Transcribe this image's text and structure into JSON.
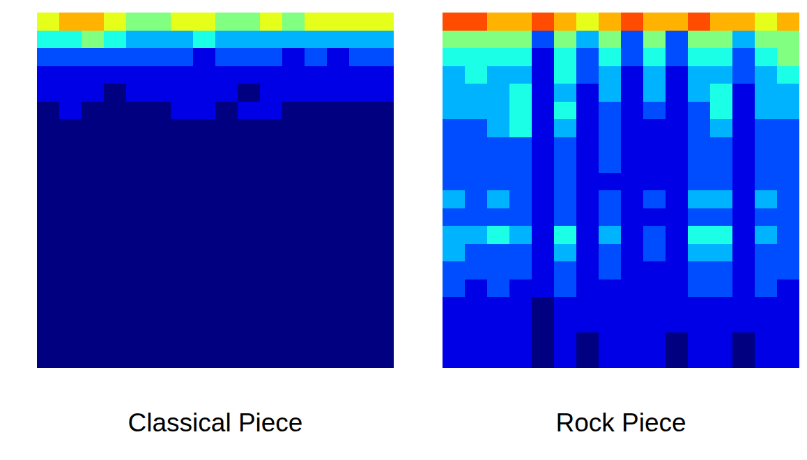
{
  "chart_data": [
    {
      "type": "heatmap",
      "title": "Classical Piece",
      "zlim": [
        0,
        10
      ],
      "cells": [
        [
          6,
          7,
          7,
          6,
          5,
          5,
          6,
          6,
          5,
          5,
          6,
          5,
          6,
          6,
          6,
          6
        ],
        [
          4,
          4,
          5,
          4,
          3,
          3,
          3,
          4,
          3,
          3,
          3,
          3,
          3,
          3,
          3,
          3
        ],
        [
          2,
          2,
          2,
          2,
          2,
          2,
          2,
          1,
          2,
          2,
          2,
          1,
          2,
          1,
          2,
          2
        ],
        [
          1,
          1,
          1,
          1,
          1,
          1,
          1,
          1,
          1,
          1,
          1,
          1,
          1,
          1,
          1,
          1
        ],
        [
          1,
          1,
          1,
          0,
          1,
          1,
          1,
          1,
          1,
          0,
          1,
          1,
          1,
          1,
          1,
          1
        ],
        [
          0,
          1,
          0,
          0,
          0,
          0,
          1,
          1,
          0,
          1,
          1,
          0,
          0,
          0,
          0,
          0
        ],
        [
          0,
          0,
          0,
          0,
          0,
          0,
          0,
          0,
          0,
          0,
          0,
          0,
          0,
          0,
          0,
          0
        ],
        [
          0,
          0,
          0,
          0,
          0,
          0,
          0,
          0,
          0,
          0,
          0,
          0,
          0,
          0,
          0,
          0
        ],
        [
          0,
          0,
          0,
          0,
          0,
          0,
          0,
          0,
          0,
          0,
          0,
          0,
          0,
          0,
          0,
          0
        ],
        [
          0,
          0,
          0,
          0,
          0,
          0,
          0,
          0,
          0,
          0,
          0,
          0,
          0,
          0,
          0,
          0
        ],
        [
          0,
          0,
          0,
          0,
          0,
          0,
          0,
          0,
          0,
          0,
          0,
          0,
          0,
          0,
          0,
          0
        ],
        [
          0,
          0,
          0,
          0,
          0,
          0,
          0,
          0,
          0,
          0,
          0,
          0,
          0,
          0,
          0,
          0
        ],
        [
          0,
          0,
          0,
          0,
          0,
          0,
          0,
          0,
          0,
          0,
          0,
          0,
          0,
          0,
          0,
          0
        ],
        [
          0,
          0,
          0,
          0,
          0,
          0,
          0,
          0,
          0,
          0,
          0,
          0,
          0,
          0,
          0,
          0
        ],
        [
          0,
          0,
          0,
          0,
          0,
          0,
          0,
          0,
          0,
          0,
          0,
          0,
          0,
          0,
          0,
          0
        ],
        [
          0,
          0,
          0,
          0,
          0,
          0,
          0,
          0,
          0,
          0,
          0,
          0,
          0,
          0,
          0,
          0
        ],
        [
          0,
          0,
          0,
          0,
          0,
          0,
          0,
          0,
          0,
          0,
          0,
          0,
          0,
          0,
          0,
          0
        ],
        [
          0,
          0,
          0,
          0,
          0,
          0,
          0,
          0,
          0,
          0,
          0,
          0,
          0,
          0,
          0,
          0
        ],
        [
          0,
          0,
          0,
          0,
          0,
          0,
          0,
          0,
          0,
          0,
          0,
          0,
          0,
          0,
          0,
          0
        ],
        [
          0,
          0,
          0,
          0,
          0,
          0,
          0,
          0,
          0,
          0,
          0,
          0,
          0,
          0,
          0,
          0
        ]
      ]
    },
    {
      "type": "heatmap",
      "title": "Rock Piece",
      "zlim": [
        0,
        10
      ],
      "cells": [
        [
          8,
          8,
          7,
          7,
          8,
          7,
          6,
          7,
          8,
          7,
          7,
          8,
          7,
          7,
          6,
          7
        ],
        [
          5,
          5,
          5,
          5,
          2,
          5,
          3,
          5,
          2,
          5,
          2,
          5,
          5,
          3,
          5,
          5
        ],
        [
          4,
          4,
          4,
          4,
          1,
          4,
          2,
          4,
          2,
          4,
          2,
          4,
          4,
          2,
          4,
          5
        ],
        [
          3,
          4,
          3,
          3,
          1,
          4,
          2,
          3,
          1,
          3,
          1,
          3,
          3,
          2,
          3,
          4
        ],
        [
          3,
          3,
          3,
          4,
          1,
          3,
          1,
          3,
          1,
          3,
          1,
          3,
          4,
          1,
          3,
          3
        ],
        [
          3,
          3,
          3,
          4,
          1,
          4,
          1,
          2,
          1,
          2,
          1,
          2,
          4,
          1,
          3,
          3
        ],
        [
          2,
          2,
          3,
          4,
          1,
          3,
          1,
          2,
          1,
          1,
          1,
          2,
          3,
          1,
          2,
          2
        ],
        [
          2,
          2,
          2,
          2,
          1,
          2,
          1,
          2,
          1,
          1,
          1,
          2,
          2,
          1,
          2,
          2
        ],
        [
          2,
          2,
          2,
          2,
          1,
          2,
          1,
          2,
          1,
          1,
          1,
          2,
          2,
          1,
          2,
          2
        ],
        [
          2,
          2,
          2,
          2,
          1,
          2,
          1,
          1,
          1,
          1,
          1,
          2,
          2,
          1,
          2,
          2
        ],
        [
          3,
          2,
          3,
          2,
          1,
          2,
          1,
          2,
          1,
          2,
          1,
          3,
          3,
          1,
          3,
          2
        ],
        [
          2,
          2,
          2,
          2,
          1,
          2,
          1,
          2,
          1,
          1,
          1,
          2,
          2,
          1,
          2,
          2
        ],
        [
          3,
          3,
          4,
          3,
          1,
          4,
          1,
          3,
          1,
          2,
          1,
          4,
          4,
          1,
          3,
          2
        ],
        [
          3,
          2,
          2,
          2,
          1,
          3,
          1,
          2,
          1,
          2,
          1,
          3,
          3,
          1,
          2,
          2
        ],
        [
          2,
          2,
          2,
          2,
          1,
          2,
          1,
          2,
          1,
          1,
          1,
          2,
          2,
          1,
          2,
          2
        ],
        [
          2,
          1,
          2,
          1,
          1,
          2,
          1,
          1,
          1,
          1,
          1,
          2,
          2,
          1,
          2,
          1
        ],
        [
          1,
          1,
          1,
          1,
          0,
          1,
          1,
          1,
          1,
          1,
          1,
          1,
          1,
          1,
          1,
          1
        ],
        [
          1,
          1,
          1,
          1,
          0,
          1,
          1,
          1,
          1,
          1,
          1,
          1,
          1,
          1,
          1,
          1
        ],
        [
          1,
          1,
          1,
          1,
          0,
          1,
          0,
          1,
          1,
          1,
          0,
          1,
          1,
          0,
          1,
          1
        ],
        [
          1,
          1,
          1,
          1,
          0,
          1,
          0,
          1,
          1,
          1,
          0,
          1,
          1,
          0,
          1,
          1
        ]
      ]
    }
  ]
}
